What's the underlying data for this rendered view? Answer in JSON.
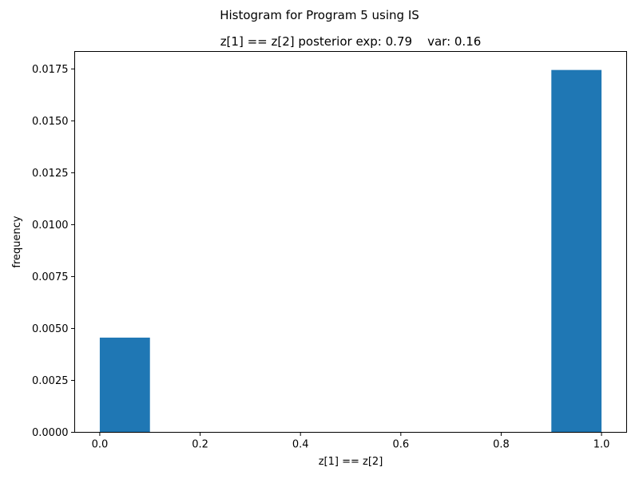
{
  "figure": {
    "suptitle": "Histogram for Program 5 using IS"
  },
  "chart_data": {
    "type": "bar",
    "title": "z[1] == z[2] posterior exp: 0.79    var: 0.16",
    "xlabel": "z[1] == z[2]",
    "ylabel": "frequency",
    "xlim": [
      -0.05,
      1.05
    ],
    "ylim": [
      0,
      0.01834
    ],
    "xticks": [
      "0.0",
      "0.2",
      "0.4",
      "0.6",
      "0.8",
      "1.0"
    ],
    "yticks": [
      "0.0000",
      "0.0025",
      "0.0050",
      "0.0075",
      "0.0100",
      "0.0125",
      "0.0150",
      "0.0175"
    ],
    "bins": [
      {
        "x0": 0.0,
        "x1": 0.1,
        "value": 0.00456
      },
      {
        "x0": 0.9,
        "x1": 1.0,
        "value": 0.01745
      }
    ],
    "bar_color": "#1f77b4",
    "grid": false,
    "legend": "none"
  }
}
